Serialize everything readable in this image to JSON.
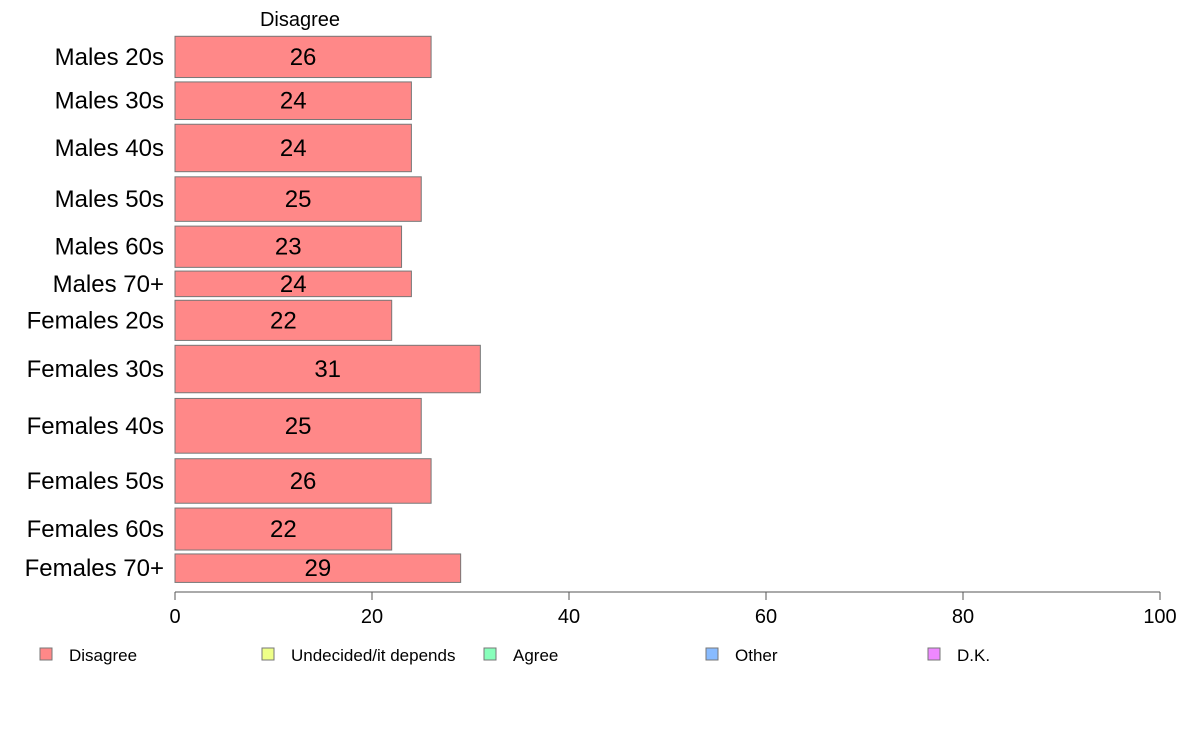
{
  "chart_data": {
    "type": "bar",
    "orientation": "horizontal",
    "stacked": true,
    "title": "",
    "xlabel": "",
    "ylabel": "",
    "xlim": [
      0,
      100
    ],
    "x_ticks": [
      0,
      20,
      40,
      60,
      80,
      100
    ],
    "grid": false,
    "legend_position": "bottom",
    "categories": [
      "Males 20s",
      "Males 30s",
      "Males 40s",
      "Males 50s",
      "Males 60s",
      "Males 70+",
      "Females 20s",
      "Females 30s",
      "Females 40s",
      "Females 50s",
      "Females 60s",
      "Females 70+"
    ],
    "category_weights": [
      1.13,
      1.03,
      1.3,
      1.22,
      1.13,
      0.7,
      1.1,
      1.3,
      1.5,
      1.22,
      1.15,
      0.78
    ],
    "series": [
      {
        "name": "Disagree",
        "color": "#ff8888",
        "values": [
          26,
          24,
          24,
          25,
          23,
          24,
          22,
          31,
          25,
          26,
          22,
          29
        ],
        "value_labels": [
          "26",
          "24",
          "24",
          "25",
          "23",
          "24",
          "22",
          "31",
          "25",
          "26",
          "22",
          "29"
        ]
      }
    ],
    "panel_header": "Disagree",
    "legend": [
      {
        "name": "Disagree",
        "color": "#ff8888"
      },
      {
        "name": "Undecided/it depends",
        "color": "#eeff88"
      },
      {
        "name": "Agree",
        "color": "#88ffbb"
      },
      {
        "name": "Other",
        "color": "#88bbff"
      },
      {
        "name": "D.K.",
        "color": "#ee88ff"
      }
    ]
  }
}
